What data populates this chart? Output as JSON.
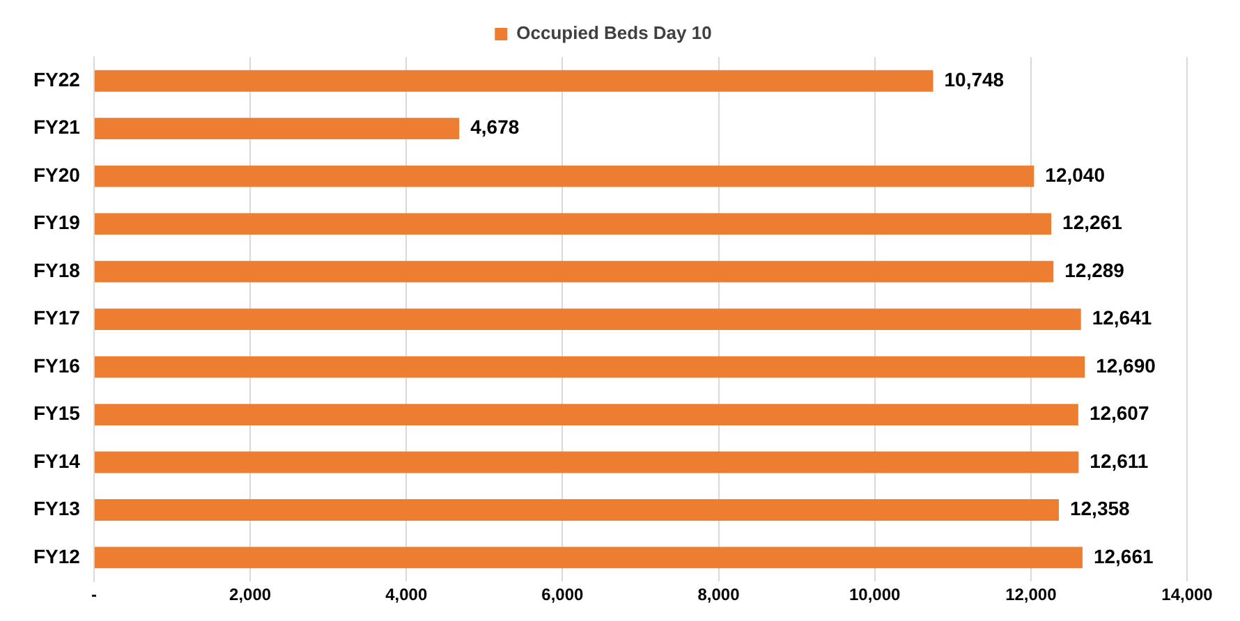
{
  "chart_data": {
    "type": "bar",
    "orientation": "horizontal",
    "categories": [
      "FY22",
      "FY21",
      "FY20",
      "FY19",
      "FY18",
      "FY17",
      "FY16",
      "FY15",
      "FY14",
      "FY13",
      "FY12"
    ],
    "series": [
      {
        "name": "Occupied Beds Day 10",
        "color": "#ed7d31",
        "values": [
          10748,
          4678,
          12040,
          12261,
          12289,
          12641,
          12690,
          12607,
          12611,
          12358,
          12661
        ],
        "value_labels": [
          "10,748",
          "4,678",
          "12,040",
          "12,261",
          "12,289",
          "12,641",
          "12,690",
          "12,607",
          "12,611",
          "12,358",
          "12,661"
        ]
      }
    ],
    "xlim": [
      0,
      14000
    ],
    "xticks": [
      {
        "value": 0,
        "label": "-"
      },
      {
        "value": 2000,
        "label": "2,000"
      },
      {
        "value": 4000,
        "label": "4,000"
      },
      {
        "value": 6000,
        "label": "6,000"
      },
      {
        "value": 8000,
        "label": "8,000"
      },
      {
        "value": 10000,
        "label": "10,000"
      },
      {
        "value": 12000,
        "label": "12,000"
      },
      {
        "value": 14000,
        "label": "14,000"
      }
    ],
    "grid": "x",
    "legend": "top"
  }
}
